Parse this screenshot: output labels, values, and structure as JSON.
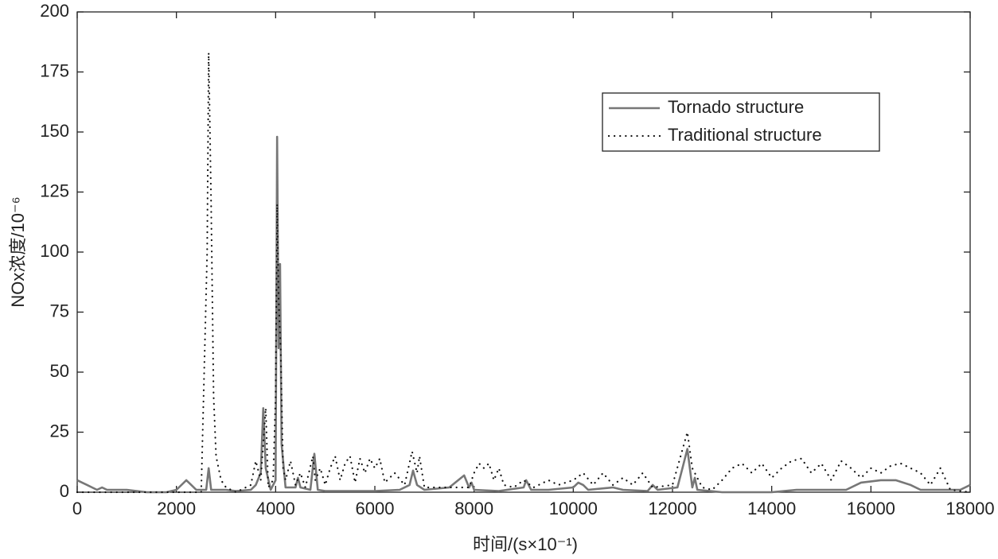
{
  "chart_data": {
    "type": "line",
    "xlabel": "时间/(s×10⁻¹)",
    "ylabel": "NOx浓度/10⁻⁶",
    "xlim": [
      0,
      18000
    ],
    "xticks": [
      0,
      2000,
      4000,
      6000,
      8000,
      10000,
      12000,
      14000,
      16000,
      18000
    ],
    "ylim": [
      0,
      200
    ],
    "yticks": [
      0,
      25,
      50,
      75,
      100,
      125,
      150,
      175,
      200
    ],
    "legend": "upper right",
    "series": [
      {
        "name": "Tornado structure",
        "color": "#777777",
        "style": "solid",
        "x": [
          0,
          100,
          200,
          300,
          400,
          500,
          600,
          1000,
          1200,
          1400,
          1800,
          2000,
          2200,
          2300,
          2400,
          2600,
          2650,
          2700,
          3000,
          3200,
          3500,
          3600,
          3700,
          3750,
          3800,
          3900,
          4000,
          4030,
          4060,
          4090,
          4120,
          4200,
          4400,
          4450,
          4500,
          4700,
          4780,
          4850,
          5000,
          5500,
          6000,
          6500,
          6700,
          6770,
          6850,
          7000,
          7500,
          7800,
          7900,
          7950,
          8000,
          8500,
          9000,
          9050,
          9150,
          9500,
          10000,
          10100,
          10200,
          10300,
          10800,
          11000,
          11500,
          11600,
          11700,
          12100,
          12200,
          12300,
          12400,
          12450,
          12500,
          13000,
          13500,
          14000,
          14500,
          15000,
          15500,
          15800,
          16200,
          16500,
          16800,
          17000,
          17500,
          17800,
          18000
        ],
        "values": [
          5,
          4,
          3,
          2,
          1,
          2,
          1,
          1,
          0.5,
          0,
          0,
          1,
          5,
          3,
          1,
          1,
          10,
          1,
          1,
          0.5,
          1,
          3,
          8,
          35,
          10,
          1,
          5,
          148,
          60,
          95,
          20,
          2,
          2,
          6,
          2,
          1,
          16,
          1,
          0.5,
          0.5,
          0.5,
          1,
          3,
          9,
          3,
          1,
          2,
          7,
          2,
          4,
          1,
          0.5,
          2,
          5,
          1,
          1,
          2,
          4,
          3,
          1,
          2,
          1,
          0.5,
          3,
          1,
          2,
          10,
          18,
          2,
          6,
          1,
          0,
          0,
          0,
          1,
          1,
          1,
          4,
          5,
          5,
          3,
          1,
          1,
          1,
          3
        ]
      },
      {
        "name": "Traditional structure",
        "color": "#111111",
        "style": "dotted",
        "x": [
          0,
          2500,
          2620,
          2650,
          2700,
          2750,
          2800,
          2900,
          3000,
          3200,
          3500,
          3600,
          3700,
          3800,
          3850,
          3950,
          4000,
          4030,
          4060,
          4100,
          4150,
          4200,
          4300,
          4400,
          4500,
          4600,
          4750,
          4800,
          4900,
          5000,
          5100,
          5200,
          5300,
          5400,
          5500,
          5600,
          5700,
          5800,
          5900,
          6000,
          6100,
          6200,
          6400,
          6600,
          6750,
          6850,
          6900,
          7000,
          7500,
          7900,
          8000,
          8100,
          8200,
          8300,
          8400,
          8500,
          8600,
          8800,
          9000,
          9200,
          9500,
          9700,
          10000,
          10200,
          10400,
          10600,
          10800,
          11000,
          11200,
          11400,
          11600,
          12000,
          12300,
          12400,
          12600,
          12800,
          13000,
          13200,
          13400,
          13600,
          13800,
          14000,
          14200,
          14400,
          14600,
          14800,
          15000,
          15200,
          15400,
          15600,
          15800,
          16000,
          16200,
          16400,
          16600,
          16800,
          17000,
          17200,
          17400,
          17600,
          18000
        ],
        "values": [
          0,
          0,
          100,
          183,
          120,
          40,
          15,
          5,
          2,
          0,
          3,
          13,
          5,
          35,
          2,
          5,
          40,
          120,
          80,
          60,
          10,
          5,
          13,
          3,
          8,
          2,
          15,
          5,
          10,
          3,
          10,
          15,
          5,
          12,
          15,
          4,
          14,
          8,
          14,
          10,
          14,
          4,
          8,
          3,
          17,
          8,
          15,
          2,
          2,
          2,
          8,
          12,
          10,
          12,
          5,
          10,
          3,
          2,
          5,
          2,
          5,
          3,
          5,
          8,
          3,
          8,
          3,
          6,
          3,
          8,
          2,
          3,
          25,
          10,
          2,
          1,
          5,
          10,
          12,
          8,
          12,
          6,
          10,
          13,
          14,
          8,
          12,
          5,
          13,
          10,
          6,
          10,
          8,
          11,
          12,
          10,
          8,
          3,
          10,
          1,
          0
        ]
      }
    ]
  }
}
